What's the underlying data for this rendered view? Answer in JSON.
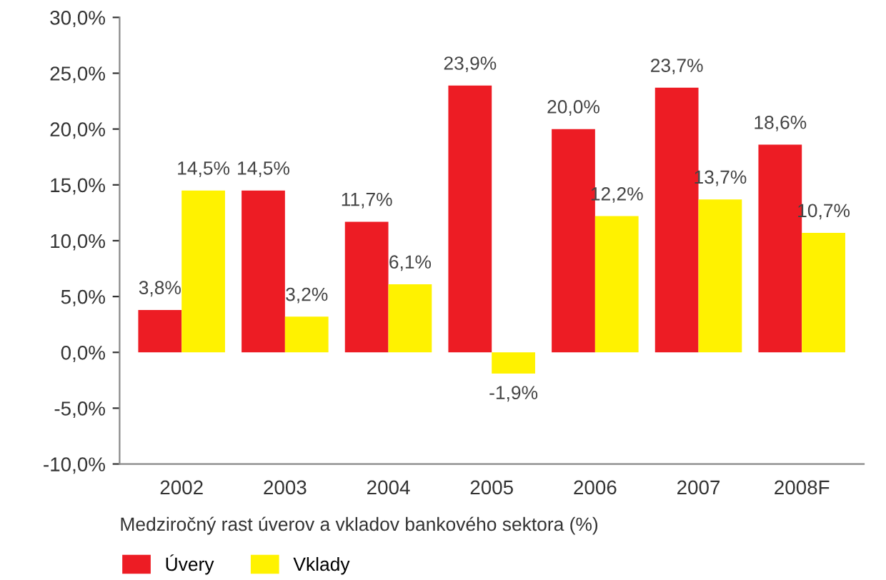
{
  "chart_data": {
    "type": "bar",
    "categories": [
      "2002",
      "2003",
      "2004",
      "2005",
      "2006",
      "2007",
      "2008F"
    ],
    "series": [
      {
        "name": "Úvery",
        "color": "#ed1c24",
        "values": [
          3.8,
          14.5,
          11.7,
          23.9,
          20.0,
          23.7,
          18.6
        ],
        "value_labels": [
          "3,8%",
          "14,5%",
          "11,7%",
          "23,9%",
          "20,0%",
          "23,7%",
          "18,6%"
        ]
      },
      {
        "name": "Vklady",
        "color": "#fff200",
        "values": [
          14.5,
          3.2,
          6.1,
          -1.9,
          12.2,
          13.7,
          10.7
        ],
        "value_labels": [
          "14,5%",
          "3,2%",
          "6,1%",
          "-1,9%",
          "12,2%",
          "13,7%",
          "10,7%"
        ]
      }
    ],
    "ylim": [
      -10,
      30
    ],
    "yticks": [
      {
        "value": -10,
        "label": "-10,0%"
      },
      {
        "value": -5,
        "label": "-5,0%"
      },
      {
        "value": 0,
        "label": "0,0%"
      },
      {
        "value": 5,
        "label": "5,0%"
      },
      {
        "value": 10,
        "label": "10,0%"
      },
      {
        "value": 15,
        "label": "15,0%"
      },
      {
        "value": 20,
        "label": "20,0%"
      },
      {
        "value": 25,
        "label": "25,0%"
      },
      {
        "value": 30,
        "label": "30,0%"
      }
    ],
    "annotations": [
      "Medziročný rast úverov a vkladov bankového sektora (%)"
    ],
    "legend": "bottom left",
    "grid": false
  }
}
